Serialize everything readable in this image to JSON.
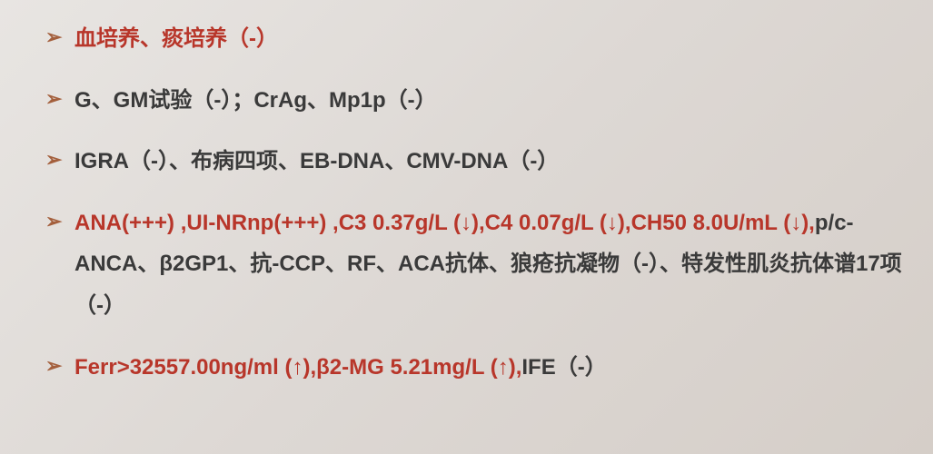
{
  "slide": {
    "background_color": "#e0dbd6",
    "bullet_color": "#a45f3c",
    "text_color_normal": "#3a3a3a",
    "text_color_highlight": "#b8362a",
    "font_size": 24,
    "items": [
      {
        "segments": [
          {
            "text": "血培养、痰培养（-）",
            "highlight": true
          }
        ]
      },
      {
        "segments": [
          {
            "text": "G、GM试验（-）；CrAg、Mp1p（-）",
            "highlight": false
          }
        ]
      },
      {
        "segments": [
          {
            "text": "IGRA（-）、布病四项、EB-DNA、CMV-DNA（-）",
            "highlight": false
          }
        ]
      },
      {
        "segments": [
          {
            "text": "ANA(+++) ,UI-NRnp(+++) ,C3 0.37g/L (↓),C4 0.07g/L (↓),CH50 8.0U/mL (↓),",
            "highlight": true
          },
          {
            "text": "p/c-ANCA、β2GP1、抗-CCP、RF、ACA抗体、狼疮抗凝物（-）、特发性肌炎抗体谱17项（-）",
            "highlight": false
          }
        ]
      },
      {
        "segments": [
          {
            "text": "Ferr>32557.00ng/ml (↑),β2-MG 5.21mg/L (↑),",
            "highlight": true
          },
          {
            "text": "IFE（-）",
            "highlight": false
          }
        ]
      }
    ]
  }
}
